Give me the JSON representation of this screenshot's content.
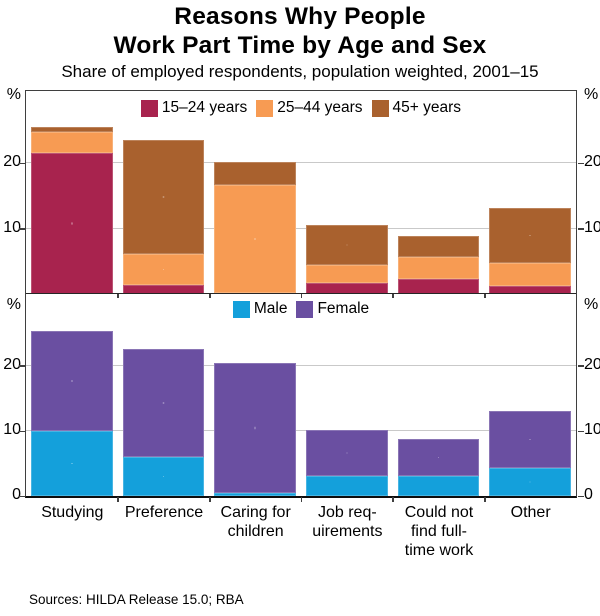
{
  "title": {
    "line1": "Reasons Why People",
    "line2": "Work Part Time by Age and Sex"
  },
  "subtitle": "Share of employed respondents, population weighted, 2001–15",
  "sources": "Sources: HILDA Release 15.0; RBA",
  "axis_unit": "%",
  "colors": {
    "age_15_24": "#A8234E",
    "age_25_44": "#F79B53",
    "age_45_plus": "#A9612E",
    "male": "#14A0DB",
    "female": "#6A4FA1",
    "gridline": "#C9C9C9",
    "frame": "#3F3F3F"
  },
  "chart_data": [
    {
      "type": "bar",
      "stacked": true,
      "panel_id": "age",
      "panel_label": "Reasons for part-time work by age group",
      "categories": [
        "Studying",
        "Preference",
        "Caring for children",
        "Job requirements",
        "Could not find full-time work",
        "Other"
      ],
      "series": [
        {
          "name": "15–24 years",
          "color": "#A8234E",
          "values": [
            21.5,
            1.4,
            0.2,
            1.7,
            2.3,
            1.3
          ]
        },
        {
          "name": "25–44 years",
          "color": "#F79B53",
          "values": [
            3.2,
            4.7,
            16.5,
            2.8,
            3.4,
            3.4
          ]
        },
        {
          "name": "45+ years",
          "color": "#A9612E",
          "values": [
            0.8,
            17.4,
            3.5,
            6.0,
            3.1,
            8.4
          ]
        }
      ],
      "ylabel": "%",
      "ylim": [
        0,
        31
      ],
      "yticks": [
        10,
        20
      ],
      "grid": true,
      "legend_position": "top-center",
      "show_zero_label": false,
      "show_category_labels": false
    },
    {
      "type": "bar",
      "stacked": true,
      "panel_id": "sex",
      "panel_label": "Reasons for part-time work by sex",
      "categories": [
        "Studying",
        "Preference",
        "Caring for children",
        "Job requirements",
        "Could not find full-time work",
        "Other"
      ],
      "category_label_lines": [
        [
          "Studying"
        ],
        [
          "Preference"
        ],
        [
          "Caring for",
          "children"
        ],
        [
          "Job req-",
          "uirements"
        ],
        [
          "Could not",
          "find full-",
          "time work"
        ],
        [
          "Other"
        ]
      ],
      "series": [
        {
          "name": "Male",
          "color": "#14A0DB",
          "values": [
            10.0,
            6.0,
            0.5,
            3.0,
            3.0,
            4.3
          ]
        },
        {
          "name": "Female",
          "color": "#6A4FA1",
          "values": [
            15.3,
            16.5,
            19.9,
            7.2,
            5.7,
            8.8
          ]
        }
      ],
      "ylabel": "%",
      "ylim": [
        0,
        31
      ],
      "yticks": [
        0,
        10,
        20
      ],
      "grid": true,
      "legend_position": "top-center",
      "show_zero_label": true,
      "show_category_labels": true
    }
  ]
}
